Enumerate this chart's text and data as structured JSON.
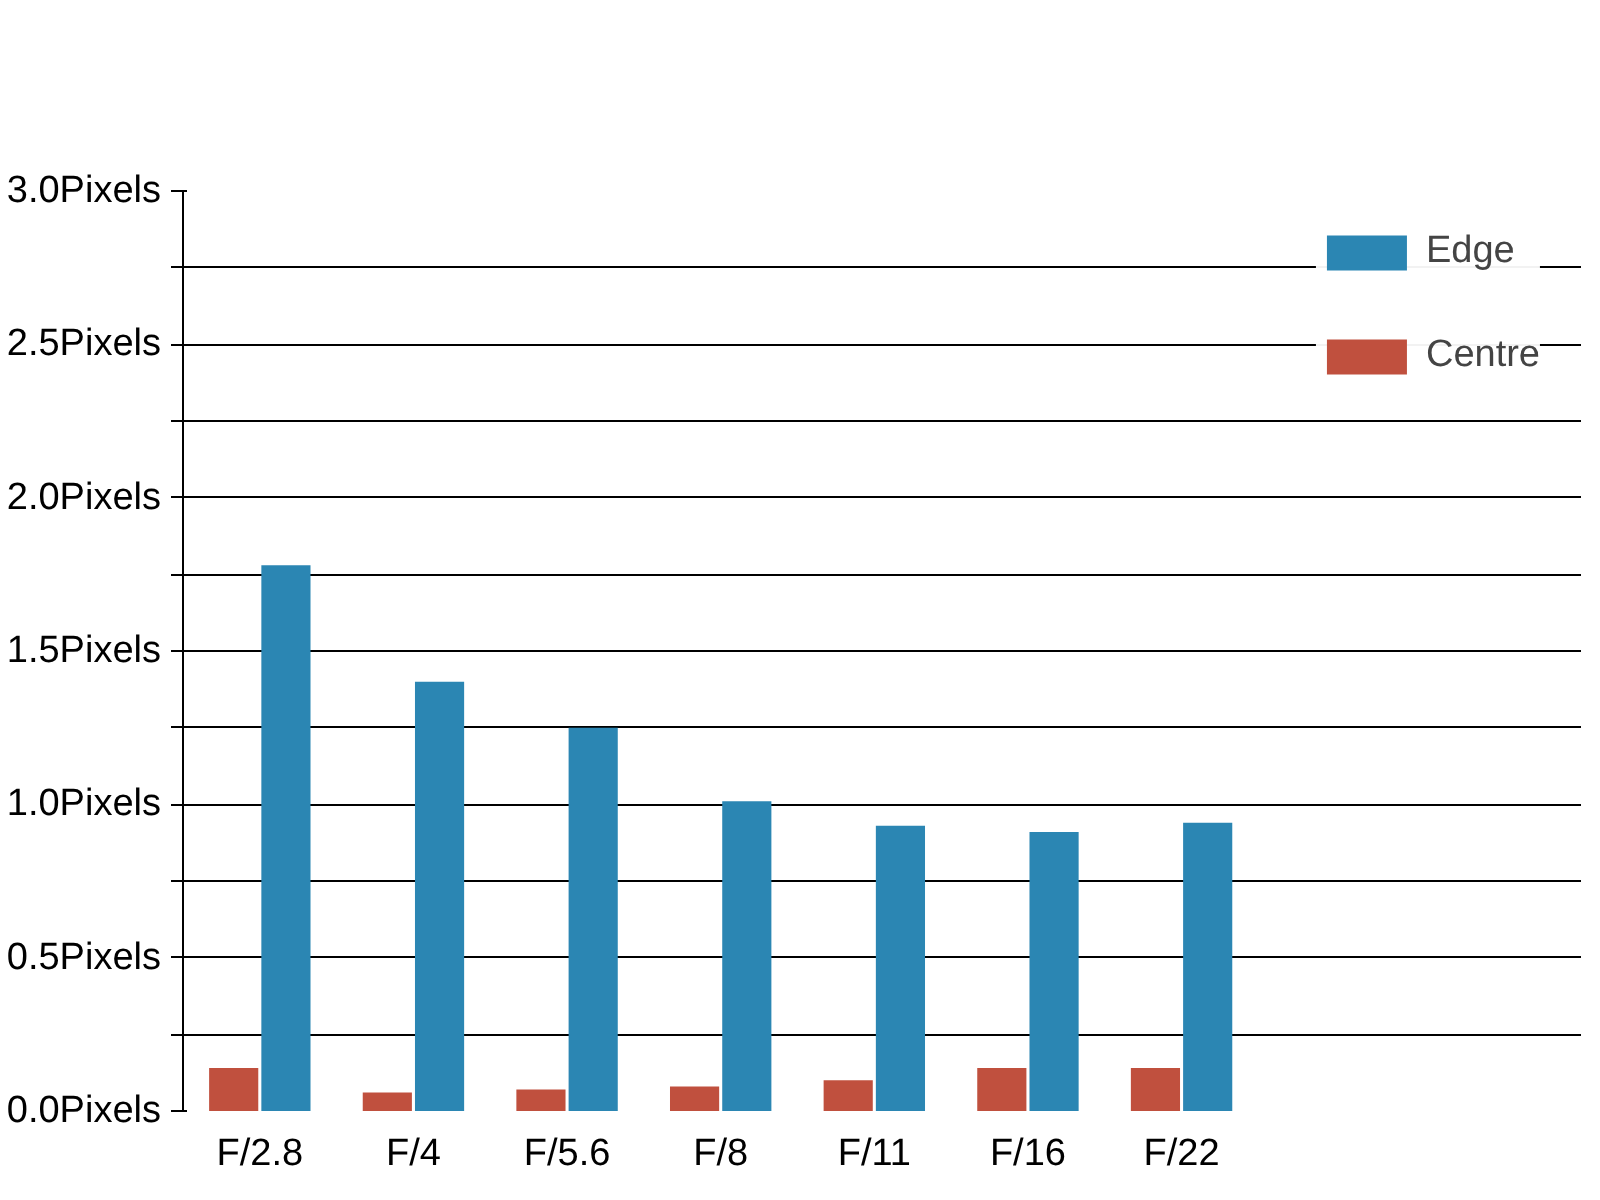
{
  "chart_data": {
    "type": "bar",
    "categories": [
      "F/2.8",
      "F/4",
      "F/5.6",
      "F/8",
      "F/11",
      "F/16",
      "F/22"
    ],
    "series": [
      {
        "name": "Centre",
        "color": "#c0503e",
        "values": [
          0.14,
          0.06,
          0.07,
          0.08,
          0.1,
          0.14,
          0.14
        ]
      },
      {
        "name": "Edge",
        "color": "#2b86b3",
        "values": [
          1.78,
          1.4,
          1.25,
          1.01,
          0.93,
          0.91,
          0.94
        ]
      }
    ],
    "ylim": [
      0,
      3.0
    ],
    "yticks": [
      {
        "value": 0,
        "label": "0.0Pixels"
      },
      {
        "value": 0.25,
        "label": null
      },
      {
        "value": 0.5,
        "label": "0.5Pixels"
      },
      {
        "value": 0.75,
        "label": null
      },
      {
        "value": 1.0,
        "label": "1.0Pixels"
      },
      {
        "value": 1.25,
        "label": null
      },
      {
        "value": 1.5,
        "label": "1.5Pixels"
      },
      {
        "value": 1.75,
        "label": null
      },
      {
        "value": 2.0,
        "label": "2.0Pixels"
      },
      {
        "value": 2.25,
        "label": null
      },
      {
        "value": 2.5,
        "label": "2.5Pixels"
      },
      {
        "value": 2.75,
        "label": null
      },
      {
        "value": 3.0,
        "label": "3.0Pixels"
      }
    ],
    "grid": "y",
    "legend": "top right"
  }
}
